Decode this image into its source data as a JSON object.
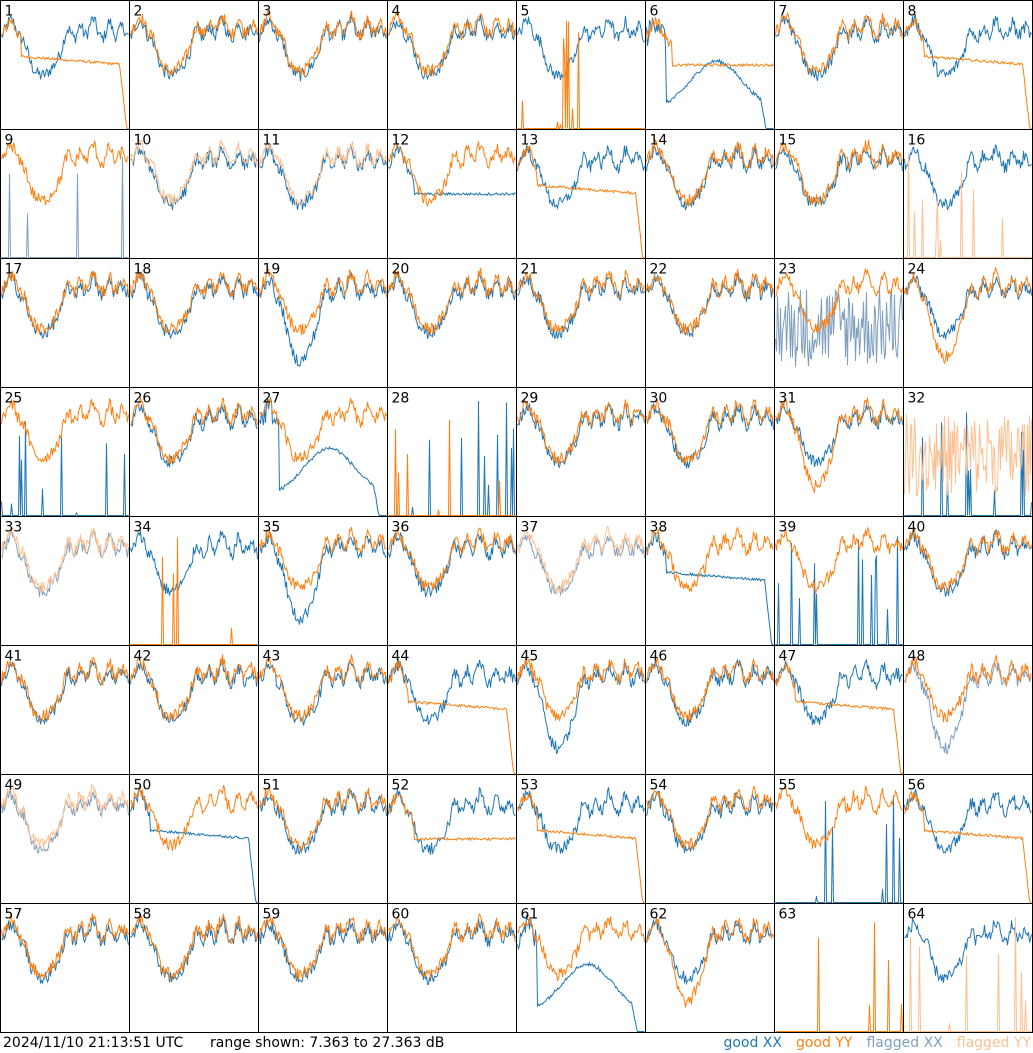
{
  "footer": {
    "timestamp": "2024/11/10 21:13:51 UTC",
    "range": "range shown: 7.363 to 27.363 dB"
  },
  "legend": [
    {
      "label": "good XX",
      "color": "#1f77b4"
    },
    {
      "label": "good YY",
      "color": "#ff7f0e"
    },
    {
      "label": "flagged XX",
      "color": "#7f9fbf"
    },
    {
      "label": "flagged YY",
      "color": "#ffbf8f"
    }
  ],
  "chart_data": {
    "type": "line",
    "range_db": [
      7.363,
      27.363
    ],
    "panels": [
      {
        "label": "1",
        "xx": "good",
        "yy": "good",
        "xx_shape": "normal",
        "yy_shape": "rolloff"
      },
      {
        "label": "2",
        "xx": "good",
        "yy": "good",
        "xx_shape": "normal",
        "yy_shape": "normal"
      },
      {
        "label": "3",
        "xx": "good",
        "yy": "good",
        "xx_shape": "normal",
        "yy_shape": "normal"
      },
      {
        "label": "4",
        "xx": "good",
        "yy": "good",
        "xx_shape": "normal",
        "yy_shape": "normal"
      },
      {
        "label": "5",
        "xx": "good",
        "yy": "good",
        "xx_shape": "normal",
        "yy_shape": "spikes"
      },
      {
        "label": "6",
        "xx": "good",
        "yy": "good",
        "xx_shape": "bump",
        "yy_shape": "plateau"
      },
      {
        "label": "7",
        "xx": "good",
        "yy": "good",
        "xx_shape": "normal",
        "yy_shape": "normal"
      },
      {
        "label": "8",
        "xx": "good",
        "yy": "good",
        "xx_shape": "normal",
        "yy_shape": "rolloff"
      },
      {
        "label": "9",
        "xx": "flagged",
        "yy": "good",
        "xx_shape": "spikes",
        "yy_shape": "normal"
      },
      {
        "label": "10",
        "xx": "good",
        "yy": "flagged",
        "xx_shape": "normal",
        "yy_shape": "normal"
      },
      {
        "label": "11",
        "xx": "good",
        "yy": "flagged",
        "xx_shape": "normal",
        "yy_shape": "normal"
      },
      {
        "label": "12",
        "xx": "good",
        "yy": "good",
        "xx_shape": "plateau",
        "yy_shape": "normal"
      },
      {
        "label": "13",
        "xx": "good",
        "yy": "good",
        "xx_shape": "normal",
        "yy_shape": "rolloff"
      },
      {
        "label": "14",
        "xx": "good",
        "yy": "good",
        "xx_shape": "normal",
        "yy_shape": "normal"
      },
      {
        "label": "15",
        "xx": "good",
        "yy": "good",
        "xx_shape": "normal",
        "yy_shape": "normal"
      },
      {
        "label": "16",
        "xx": "good",
        "yy": "flagged",
        "xx_shape": "normal",
        "yy_shape": "spikes"
      },
      {
        "label": "17",
        "xx": "good",
        "yy": "good",
        "xx_shape": "normal",
        "yy_shape": "normal"
      },
      {
        "label": "18",
        "xx": "good",
        "yy": "good",
        "xx_shape": "normal",
        "yy_shape": "normal"
      },
      {
        "label": "19",
        "xx": "good",
        "yy": "good",
        "xx_shape": "deepdip",
        "yy_shape": "normal"
      },
      {
        "label": "20",
        "xx": "good",
        "yy": "good",
        "xx_shape": "normal",
        "yy_shape": "normal"
      },
      {
        "label": "21",
        "xx": "good",
        "yy": "good",
        "xx_shape": "normal",
        "yy_shape": "normal"
      },
      {
        "label": "22",
        "xx": "good",
        "yy": "good",
        "xx_shape": "normal",
        "yy_shape": "normal"
      },
      {
        "label": "23",
        "xx": "flagged",
        "yy": "good",
        "xx_shape": "noisy",
        "yy_shape": "normal"
      },
      {
        "label": "24",
        "xx": "good",
        "yy": "good",
        "xx_shape": "normal",
        "yy_shape": "deepdip"
      },
      {
        "label": "25",
        "xx": "good",
        "yy": "good",
        "xx_shape": "spikes",
        "yy_shape": "normal"
      },
      {
        "label": "26",
        "xx": "good",
        "yy": "good",
        "xx_shape": "normal",
        "yy_shape": "normal"
      },
      {
        "label": "27",
        "xx": "good",
        "yy": "good",
        "xx_shape": "bump",
        "yy_shape": "normal"
      },
      {
        "label": "28",
        "xx": "good",
        "yy": "good",
        "xx_shape": "spikes",
        "yy_shape": "spikes"
      },
      {
        "label": "29",
        "xx": "good",
        "yy": "good",
        "xx_shape": "normal",
        "yy_shape": "normal"
      },
      {
        "label": "30",
        "xx": "good",
        "yy": "good",
        "xx_shape": "normal",
        "yy_shape": "normal"
      },
      {
        "label": "31",
        "xx": "good",
        "yy": "good",
        "xx_shape": "normal",
        "yy_shape": "deepdip"
      },
      {
        "label": "32",
        "xx": "good",
        "yy": "flagged",
        "xx_shape": "spikes",
        "yy_shape": "noisy"
      },
      {
        "label": "33",
        "xx": "flagged",
        "yy": "flagged",
        "xx_shape": "normal",
        "yy_shape": "normal"
      },
      {
        "label": "34",
        "xx": "good",
        "yy": "good",
        "xx_shape": "normal",
        "yy_shape": "spikes"
      },
      {
        "label": "35",
        "xx": "good",
        "yy": "good",
        "xx_shape": "deepdip",
        "yy_shape": "normal"
      },
      {
        "label": "36",
        "xx": "good",
        "yy": "good",
        "xx_shape": "normal",
        "yy_shape": "normal"
      },
      {
        "label": "37",
        "xx": "flagged",
        "yy": "flagged",
        "xx_shape": "normal",
        "yy_shape": "normal"
      },
      {
        "label": "38",
        "xx": "good",
        "yy": "good",
        "xx_shape": "rolloff",
        "yy_shape": "normal"
      },
      {
        "label": "39",
        "xx": "good",
        "yy": "good",
        "xx_shape": "spikes",
        "yy_shape": "normal"
      },
      {
        "label": "40",
        "xx": "good",
        "yy": "good",
        "xx_shape": "normal",
        "yy_shape": "normal"
      },
      {
        "label": "41",
        "xx": "good",
        "yy": "good",
        "xx_shape": "normal",
        "yy_shape": "normal"
      },
      {
        "label": "42",
        "xx": "good",
        "yy": "good",
        "xx_shape": "normal",
        "yy_shape": "normal"
      },
      {
        "label": "43",
        "xx": "good",
        "yy": "good",
        "xx_shape": "normal",
        "yy_shape": "normal"
      },
      {
        "label": "44",
        "xx": "good",
        "yy": "good",
        "xx_shape": "normal",
        "yy_shape": "rolloff"
      },
      {
        "label": "45",
        "xx": "good",
        "yy": "good",
        "xx_shape": "deepdip",
        "yy_shape": "normal"
      },
      {
        "label": "46",
        "xx": "good",
        "yy": "good",
        "xx_shape": "normal",
        "yy_shape": "normal"
      },
      {
        "label": "47",
        "xx": "good",
        "yy": "good",
        "xx_shape": "normal",
        "yy_shape": "rolloff"
      },
      {
        "label": "48",
        "xx": "flagged",
        "yy": "good",
        "xx_shape": "deepdip",
        "yy_shape": "normal"
      },
      {
        "label": "49",
        "xx": "flagged",
        "yy": "flagged",
        "xx_shape": "normal",
        "yy_shape": "normal"
      },
      {
        "label": "50",
        "xx": "good",
        "yy": "good",
        "xx_shape": "rolloff",
        "yy_shape": "normal"
      },
      {
        "label": "51",
        "xx": "good",
        "yy": "good",
        "xx_shape": "normal",
        "yy_shape": "normal"
      },
      {
        "label": "52",
        "xx": "good",
        "yy": "good",
        "xx_shape": "normal",
        "yy_shape": "plateau"
      },
      {
        "label": "53",
        "xx": "good",
        "yy": "good",
        "xx_shape": "normal",
        "yy_shape": "rolloff"
      },
      {
        "label": "54",
        "xx": "good",
        "yy": "good",
        "xx_shape": "normal",
        "yy_shape": "normal"
      },
      {
        "label": "55",
        "xx": "good",
        "yy": "good",
        "xx_shape": "spikes",
        "yy_shape": "normal"
      },
      {
        "label": "56",
        "xx": "good",
        "yy": "good",
        "xx_shape": "normal",
        "yy_shape": "rolloff"
      },
      {
        "label": "57",
        "xx": "good",
        "yy": "good",
        "xx_shape": "normal",
        "yy_shape": "normal"
      },
      {
        "label": "58",
        "xx": "good",
        "yy": "good",
        "xx_shape": "normal",
        "yy_shape": "normal"
      },
      {
        "label": "59",
        "xx": "good",
        "yy": "good",
        "xx_shape": "normal",
        "yy_shape": "normal"
      },
      {
        "label": "60",
        "xx": "good",
        "yy": "good",
        "xx_shape": "normal",
        "yy_shape": "normal"
      },
      {
        "label": "61",
        "xx": "good",
        "yy": "good",
        "xx_shape": "bump",
        "yy_shape": "normal"
      },
      {
        "label": "62",
        "xx": "good",
        "yy": "good",
        "xx_shape": "normal",
        "yy_shape": "deepdip"
      },
      {
        "label": "63",
        "xx": "good",
        "yy": "good",
        "xx_shape": "none",
        "yy_shape": "spikes"
      },
      {
        "label": "64",
        "xx": "good",
        "yy": "flagged",
        "xx_shape": "normal",
        "yy_shape": "spikes"
      }
    ]
  }
}
